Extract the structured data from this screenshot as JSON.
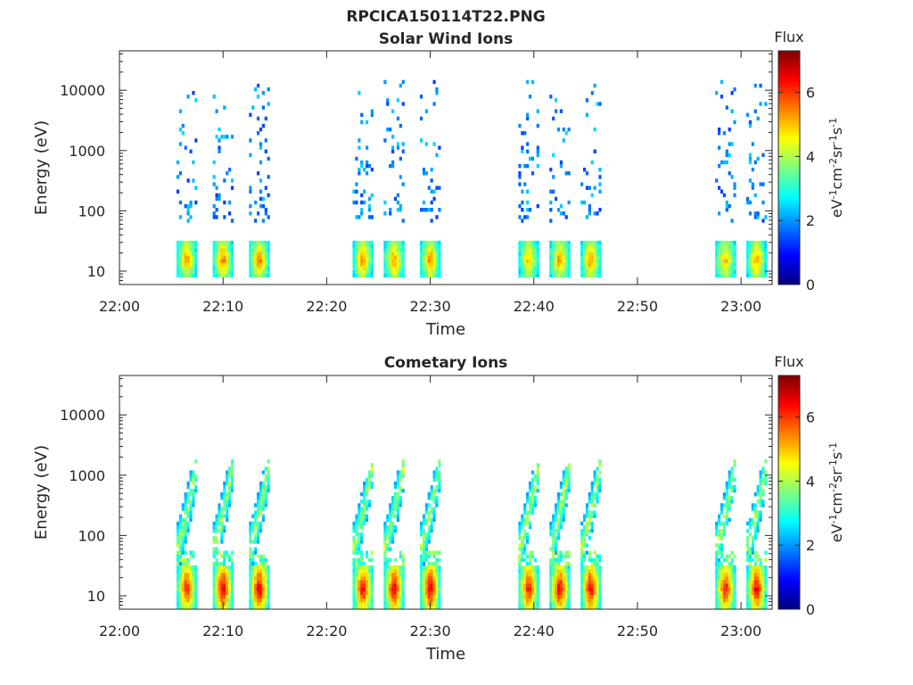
{
  "figure_title": "RPCICA150114T22.PNG",
  "colormap": [
    "#00007f",
    "#0000ff",
    "#007fff",
    "#00ffff",
    "#7fff7f",
    "#ffff00",
    "#ff7f00",
    "#ff0000",
    "#7f0000"
  ],
  "chart_data": [
    {
      "type": "heatmap",
      "title": "Solar Wind Ions",
      "xlabel": "Time",
      "ylabel": "Energy (eV)",
      "x_ticks": [
        "22:00",
        "22:10",
        "22:20",
        "22:30",
        "22:40",
        "22:50",
        "23:00"
      ],
      "x_range_min": [
        0,
        63
      ],
      "y_scale": "log",
      "y_range": [
        6,
        45000
      ],
      "y_ticks": [
        "10",
        "100",
        "1000",
        "10000"
      ],
      "colorbar": {
        "title": "Flux",
        "label": "eV-1cm-2sr-1s-1",
        "range": [
          0,
          7.3
        ],
        "ticks": [
          "0",
          "2",
          "4",
          "6"
        ]
      },
      "bursts_min": [
        6.5,
        10,
        13.5,
        23.5,
        26.5,
        30,
        39.5,
        42.5,
        45.5,
        58.5,
        61.5
      ],
      "core_energy_eV": [
        8,
        30
      ],
      "core_peak_flux": [
        5.5,
        5.8,
        5.8,
        5.6,
        5.5,
        5.7,
        5.2,
        5.5,
        5.6,
        5.3,
        5.6
      ],
      "sparse_energy_eV": [
        60,
        15000
      ],
      "sparse_flux": [
        1.3,
        2.5
      ]
    },
    {
      "type": "heatmap",
      "title": "Cometary Ions",
      "xlabel": "Time",
      "ylabel": "Energy (eV)",
      "x_ticks": [
        "22:00",
        "22:10",
        "22:20",
        "22:30",
        "22:40",
        "22:50",
        "23:00"
      ],
      "x_range_min": [
        0,
        63
      ],
      "y_scale": "log",
      "y_range": [
        6,
        45000
      ],
      "y_ticks": [
        "10",
        "100",
        "1000",
        "10000"
      ],
      "colorbar": {
        "title": "Flux",
        "label": "eV-1cm-2sr-1s-1",
        "range": [
          0,
          7.3
        ],
        "ticks": [
          "0",
          "2",
          "4",
          "6"
        ]
      },
      "bursts_min": [
        6.5,
        10,
        13.5,
        23.5,
        26.5,
        30,
        39.5,
        42.5,
        45.5,
        58.5,
        61.5
      ],
      "core_energy_eV": [
        6,
        30
      ],
      "core_peak_flux": [
        6.5,
        7.0,
        7.0,
        6.8,
        6.9,
        7.0,
        6.6,
        6.8,
        6.9,
        6.6,
        6.9
      ],
      "plume_energy_eV": [
        30,
        1200
      ],
      "plume_flux": [
        2,
        4.5
      ]
    }
  ]
}
